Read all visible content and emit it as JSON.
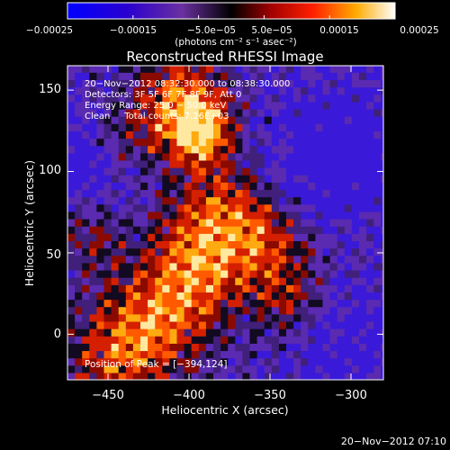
{
  "chart_data": {
    "type": "heatmap",
    "title": "Reconstructed RHESSI Image",
    "xlabel": "Heliocentric X (arcsec)",
    "ylabel": "Heliocentric Y (arcsec)",
    "xlim": [
      -475,
      -280
    ],
    "ylim": [
      -28,
      165
    ],
    "x_ticks": [
      -450,
      -400,
      -350,
      -300
    ],
    "x_tick_labels": [
      "−450",
      "−400",
      "−350",
      "−300"
    ],
    "y_ticks": [
      0,
      50,
      100,
      150
    ],
    "y_tick_labels": [
      "0",
      "50",
      "100",
      "150"
    ],
    "colorbar": {
      "range": [
        -0.00025,
        0.00025
      ],
      "ticks": [
        -0.00025,
        -0.00015,
        -5e-05,
        5e-05,
        0.00015,
        0.00025
      ],
      "tick_labels": [
        "−0.00025",
        "−0.00015",
        "−5.0e−05",
        "5.0e−05",
        "0.00015",
        "0.00025"
      ],
      "units_label": "(photons cm⁻² s⁻¹ asec⁻²)"
    },
    "annotations": [
      "20−Nov−2012 08:32:30.000 to 08:38:30.000",
      "Detectors: 3F 5F 6F 7F 8F 9F, Att 0",
      "Energy Range: 25.0 − 50.0 keV",
      "Clean     Total counts: 7.26E+03"
    ],
    "peak_label": "Position of Peak = [−394,124]",
    "peak": [
      -394,
      124
    ],
    "grid": false
  },
  "footer": {
    "timestamp": "20−Nov−2012 07:10"
  },
  "colors": {
    "background": "#000000",
    "text": "#ffffff"
  }
}
